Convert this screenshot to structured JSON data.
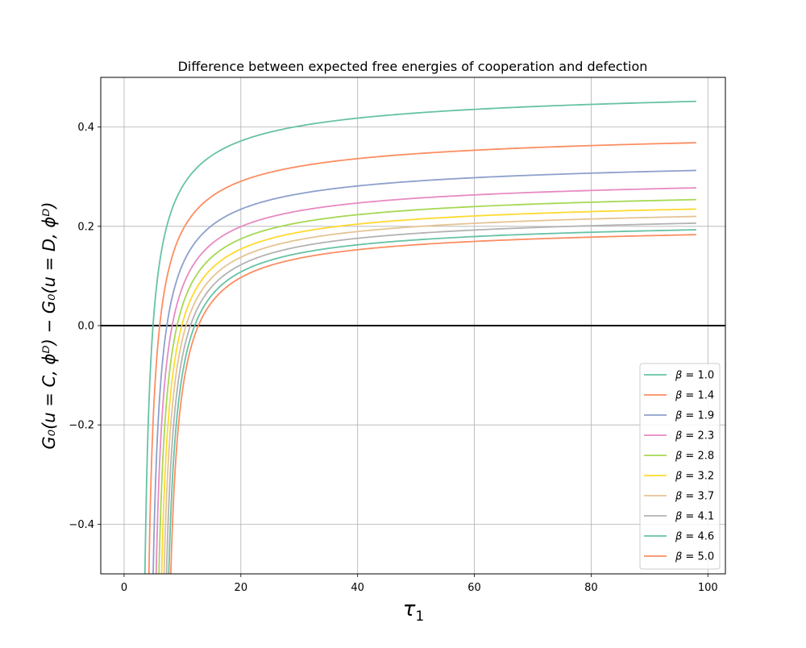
{
  "chart_data": {
    "type": "line",
    "title": "Difference between expected free energies of cooperation and defection",
    "xlabel": "τ",
    "xlabel_sub": "1",
    "ylabel": "G₀(u = C, ϕᴰ) − G₀(u = D, ϕᴰ)",
    "xlim": [
      -4,
      103
    ],
    "ylim": [
      -0.5,
      0.5
    ],
    "x_ticks": [
      0,
      20,
      40,
      60,
      80,
      100
    ],
    "x_tick_labels": [
      "0",
      "20",
      "40",
      "60",
      "80",
      "100"
    ],
    "y_ticks": [
      -0.4,
      -0.2,
      0.0,
      0.2,
      0.4
    ],
    "y_tick_labels": [
      "−0.4",
      "−0.2",
      "0.0",
      "0.2",
      "0.4"
    ],
    "grid": true,
    "legend_position": "lower-right",
    "reference_line": {
      "y": 0.0,
      "color": "#000000"
    },
    "x": [
      1,
      2,
      4,
      5,
      6,
      7,
      8,
      9,
      10,
      11,
      12,
      13,
      14,
      15,
      16,
      17,
      18,
      19,
      20,
      22,
      24,
      26,
      28,
      30,
      32,
      34,
      36,
      38,
      40,
      42,
      44,
      46,
      48,
      50,
      52,
      54,
      56,
      58,
      60,
      62,
      64,
      66,
      68,
      70,
      72,
      74,
      76,
      78,
      80,
      82,
      84,
      86,
      88,
      90,
      92,
      94,
      96,
      98
    ],
    "series": [
      {
        "name": "β = 1.0",
        "label_symbol": "β",
        "label_value": "1.0",
        "color": "#66c2a5",
        "shape_a": 0.5566,
        "shape_c": 4.9536
      },
      {
        "name": "β = 1.4",
        "label_symbol": "β",
        "label_value": "1.4",
        "color": "#fc8d62",
        "shape_a": 0.4603,
        "shape_c": 6.0974
      },
      {
        "name": "β = 1.9",
        "label_symbol": "β",
        "label_value": "1.9",
        "color": "#8da0cb",
        "shape_a": 0.3961,
        "shape_c": 7.3242
      },
      {
        "name": "β = 2.3",
        "label_symbol": "β",
        "label_value": "2.3",
        "color": "#e78ac3",
        "shape_a": 0.3552,
        "shape_c": 8.2376
      },
      {
        "name": "β = 2.8",
        "label_symbol": "β",
        "label_value": "2.8",
        "color": "#a6d854",
        "shape_a": 0.3277,
        "shape_c": 9.0684
      },
      {
        "name": "β = 3.2",
        "label_symbol": "β",
        "label_value": "3.2",
        "color": "#ffd92f",
        "shape_a": 0.3057,
        "shape_c": 9.8784
      },
      {
        "name": "β = 3.7",
        "label_symbol": "β",
        "label_value": "3.7",
        "color": "#e5c494",
        "shape_a": 0.2885,
        "shape_c": 10.6128
      },
      {
        "name": "β = 4.1",
        "label_symbol": "β",
        "label_value": "4.1",
        "color": "#b3b3b3",
        "shape_a": 0.2727,
        "shape_c": 11.3638
      },
      {
        "name": "β = 4.6",
        "label_symbol": "β",
        "label_value": "4.6",
        "color": "#66c2a5",
        "shape_a": 0.257,
        "shape_c": 12.0896
      },
      {
        "name": "β = 5.0",
        "label_symbol": "β",
        "label_value": "5.0",
        "color": "#fc8d62",
        "shape_a": 0.2454,
        "shape_c": 12.7296
      }
    ]
  }
}
